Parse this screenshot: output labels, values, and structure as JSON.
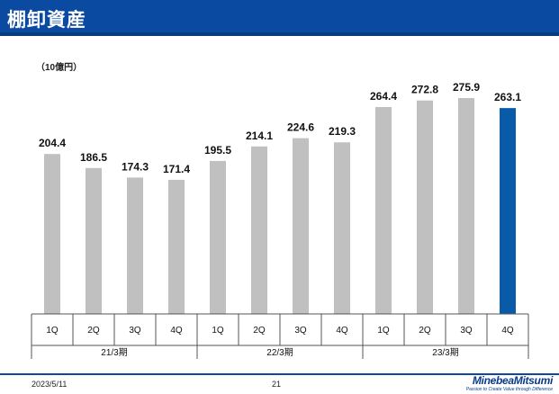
{
  "header": {
    "title": "棚卸資産"
  },
  "unit_label": "（10億円）",
  "footer": {
    "date": "2023/5/11",
    "page": "21",
    "logo_main": "MinebeaMitsumi",
    "logo_sub": "Passion to Create Value through Difference"
  },
  "colors": {
    "header": "#0a4aa0",
    "bar_default": "#c0c0c0",
    "bar_highlight": "#0a5aaa"
  },
  "chart_data": {
    "type": "bar",
    "title": "棚卸資産",
    "ylabel": "（10億円）",
    "categories": [
      "1Q",
      "2Q",
      "3Q",
      "4Q",
      "1Q",
      "2Q",
      "3Q",
      "4Q",
      "1Q",
      "2Q",
      "3Q",
      "4Q"
    ],
    "groups": [
      {
        "label": "21/3期",
        "span": 4
      },
      {
        "label": "22/3期",
        "span": 4
      },
      {
        "label": "23/3期",
        "span": 4
      }
    ],
    "values": [
      204.4,
      186.5,
      174.3,
      171.4,
      195.5,
      214.1,
      224.6,
      219.3,
      264.4,
      272.8,
      275.9,
      263.1
    ],
    "highlight_index": 11,
    "ylim": [
      0,
      290
    ],
    "grid": false
  }
}
